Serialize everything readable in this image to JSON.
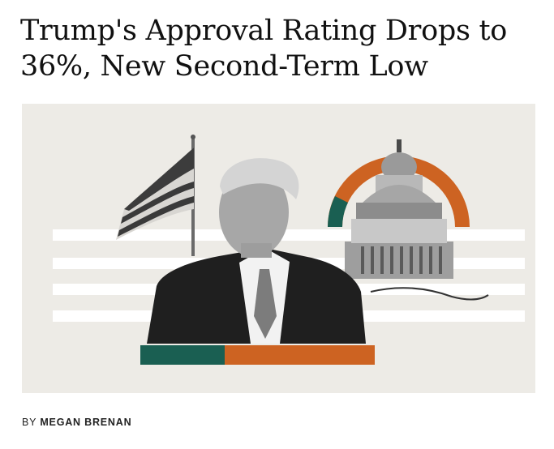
{
  "article": {
    "headline": "Trump's Approval Rating Drops to 36%, New Second-Term Low",
    "hero_image": {
      "description_icon": "collage-illustration-icon",
      "accent_colors": {
        "green": "#1a5f52",
        "orange": "#cd6322",
        "background": "#edebe6"
      }
    },
    "byline": {
      "prefix": "BY",
      "author": "MEGAN BRENAN"
    }
  }
}
